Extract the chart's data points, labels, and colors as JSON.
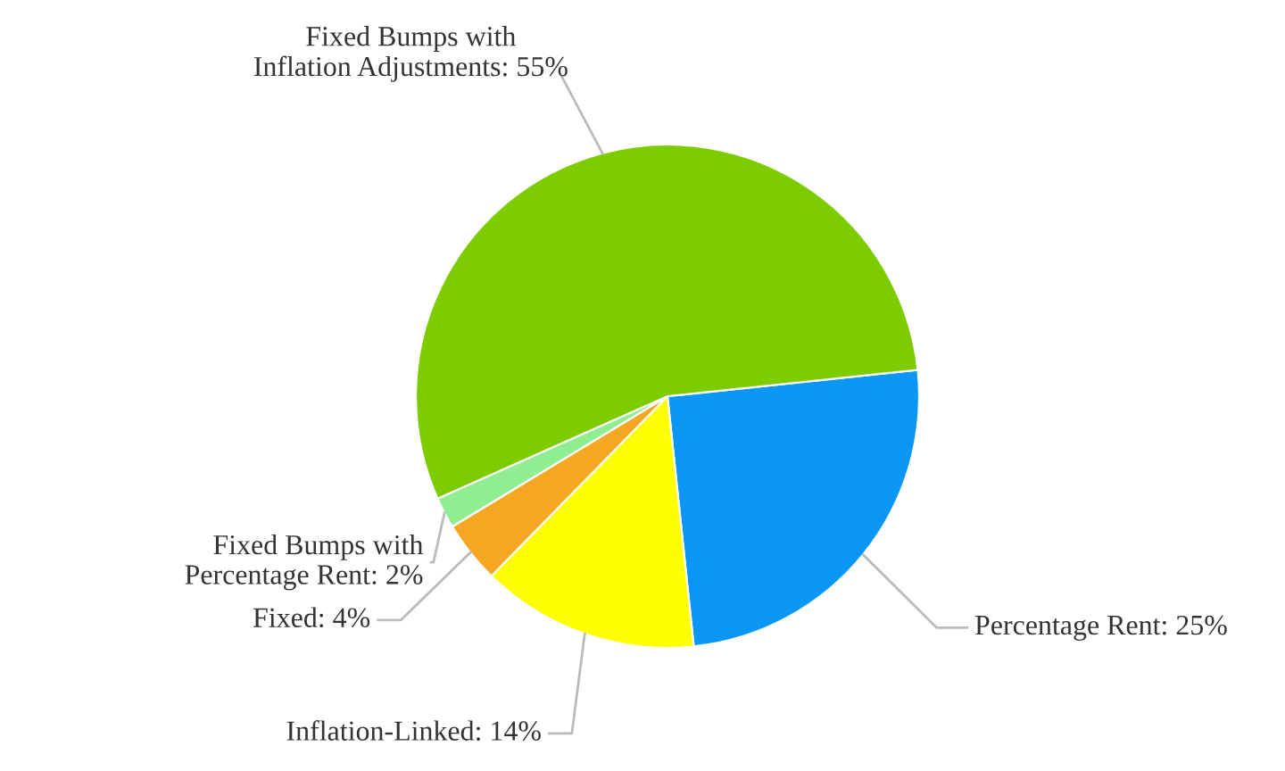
{
  "chart_data": {
    "type": "pie",
    "categories": [
      "Percentage Rent",
      "Inflation-Linked",
      "Fixed",
      "Fixed Bumps with Percentage Rent",
      "Fixed Bumps with Inflation Adjustments"
    ],
    "values": [
      25,
      14,
      4,
      2,
      55
    ],
    "colors": [
      "#0a96f5",
      "#ffff00",
      "#f5a623",
      "#90ee90",
      "#7dcc00"
    ],
    "value_labels": [
      "25%",
      "14%",
      "4%",
      "2%",
      "55%"
    ]
  }
}
